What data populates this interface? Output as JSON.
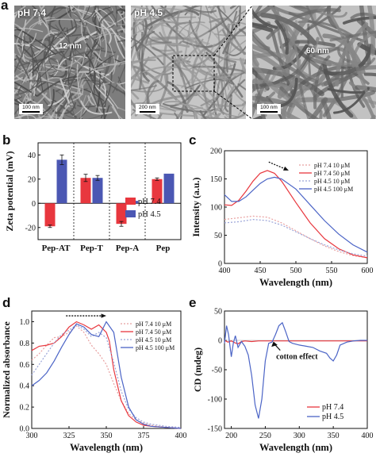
{
  "panel_a": {
    "letter": "a",
    "images": [
      {
        "label": "pH 7.4",
        "scale_bar": "100 nm",
        "measure": "12 nm"
      },
      {
        "label": "pH 4.5",
        "scale_bar": "200 nm"
      },
      {
        "label": "",
        "scale_bar": "100 nm",
        "measure": "60 nm"
      }
    ]
  },
  "chart_data": [
    {
      "panel": "b",
      "type": "bar",
      "ylabel": "Zeta potential (mV)",
      "ylim": [
        -30,
        50
      ],
      "yticks": [
        -20,
        0,
        20,
        40
      ],
      "categories": [
        "Pep-AT",
        "Pep-T",
        "Pep-A",
        "Pep"
      ],
      "series": [
        {
          "name": "pH 7.4",
          "color": "#e8373e",
          "values": [
            -19,
            21,
            -17,
            20
          ],
          "errors": [
            1,
            3,
            2,
            1
          ]
        },
        {
          "name": "pH 4.5",
          "color": "#4b57b3",
          "values": [
            36,
            21,
            2,
            24.5
          ],
          "errors": [
            4,
            2,
            1.5,
            0
          ]
        }
      ],
      "legend": "right"
    },
    {
      "panel": "c",
      "type": "line",
      "xlabel": "Wavelength (nm)",
      "ylabel": "Intensity (a.u.)",
      "xlim": [
        400,
        600
      ],
      "ylim": [
        0,
        200
      ],
      "xticks": [
        400,
        450,
        500,
        550,
        600
      ],
      "yticks": [
        0,
        50,
        100,
        150,
        200
      ],
      "series": [
        {
          "name": "pH 7.4 10 μM",
          "color": "#e8a0a0",
          "dash": true,
          "x": [
            400,
            420,
            440,
            460,
            480,
            500,
            520,
            540,
            560,
            580,
            600
          ],
          "y": [
            78,
            81,
            84,
            82,
            72,
            58,
            44,
            31,
            21,
            14,
            10
          ]
        },
        {
          "name": "pH 7.4 50 μM",
          "color": "#e8373e",
          "dash": false,
          "x": [
            400,
            410,
            420,
            430,
            440,
            450,
            460,
            470,
            480,
            500,
            520,
            540,
            560,
            580,
            600
          ],
          "y": [
            104,
            103,
            112,
            128,
            146,
            160,
            165,
            160,
            146,
            108,
            72,
            44,
            26,
            15,
            10
          ]
        },
        {
          "name": "pH 4.5 10 μM",
          "color": "#9aa4d8",
          "dash": true,
          "x": [
            400,
            420,
            440,
            460,
            480,
            500,
            520,
            540,
            560,
            580,
            600
          ],
          "y": [
            72,
            74,
            78,
            76,
            68,
            56,
            44,
            33,
            24,
            17,
            13
          ]
        },
        {
          "name": "pH 4.5 100 μM",
          "color": "#4b64c6",
          "dash": false,
          "x": [
            400,
            410,
            420,
            430,
            440,
            450,
            460,
            470,
            480,
            500,
            520,
            540,
            560,
            580,
            600
          ],
          "y": [
            122,
            110,
            110,
            118,
            130,
            142,
            150,
            153,
            150,
            132,
            104,
            76,
            52,
            33,
            20
          ]
        }
      ],
      "legend": "top-right",
      "annotation": "arrow"
    },
    {
      "panel": "d",
      "type": "line",
      "xlabel": "Wavelength (nm)",
      "ylabel": "Normalized absorbance",
      "xlim": [
        300,
        400
      ],
      "ylim": [
        0,
        1.1
      ],
      "xticks": [
        300,
        325,
        350,
        375,
        400
      ],
      "yticks": [
        0.0,
        0.2,
        0.4,
        0.6,
        0.8,
        1.0
      ],
      "series": [
        {
          "name": "pH 7.4 10 μM",
          "color": "#e8a0a0",
          "dash": true,
          "x": [
            300,
            305,
            310,
            315,
            320,
            325,
            330,
            335,
            340,
            345,
            350,
            355,
            360,
            365,
            370,
            375,
            380,
            390,
            400
          ],
          "y": [
            0.64,
            0.7,
            0.78,
            0.85,
            0.86,
            0.9,
            0.96,
            0.9,
            0.78,
            0.7,
            0.6,
            0.42,
            0.26,
            0.14,
            0.08,
            0.05,
            0.03,
            0.01,
            0.0
          ]
        },
        {
          "name": "pH 7.4 50 μM",
          "color": "#e8373e",
          "dash": false,
          "x": [
            300,
            305,
            310,
            315,
            320,
            325,
            330,
            335,
            340,
            345,
            350,
            352,
            355,
            360,
            365,
            370,
            375,
            380,
            390,
            400
          ],
          "y": [
            0.73,
            0.77,
            0.78,
            0.8,
            0.86,
            0.95,
            1.0,
            0.97,
            0.93,
            0.97,
            0.9,
            0.82,
            0.55,
            0.26,
            0.12,
            0.06,
            0.03,
            0.02,
            0.01,
            0.0
          ]
        },
        {
          "name": "pH 4.5 10 μM",
          "color": "#9aa4d8",
          "dash": true,
          "x": [
            300,
            305,
            310,
            315,
            320,
            325,
            330,
            335,
            340,
            345,
            350,
            355,
            360,
            365,
            370,
            375,
            380,
            390,
            400
          ],
          "y": [
            0.5,
            0.6,
            0.7,
            0.8,
            0.88,
            0.92,
            0.97,
            0.93,
            0.86,
            0.9,
            0.85,
            0.62,
            0.35,
            0.18,
            0.1,
            0.06,
            0.04,
            0.02,
            0.01
          ]
        },
        {
          "name": "pH 4.5 100 μM",
          "color": "#4b64c6",
          "dash": false,
          "x": [
            300,
            305,
            310,
            315,
            320,
            325,
            330,
            335,
            340,
            345,
            350,
            355,
            360,
            365,
            370,
            375,
            380,
            390,
            400
          ],
          "y": [
            0.4,
            0.45,
            0.52,
            0.63,
            0.76,
            0.88,
            0.98,
            0.95,
            0.88,
            0.86,
            1.0,
            0.9,
            0.48,
            0.2,
            0.08,
            0.04,
            0.02,
            0.01,
            0.0
          ]
        }
      ],
      "legend": "top-right",
      "annotation": "arrow"
    },
    {
      "panel": "e",
      "type": "line",
      "xlabel": "Wavelength (nm)",
      "ylabel": "CD (mdeg)",
      "xlim": [
        190,
        400
      ],
      "ylim": [
        -150,
        50
      ],
      "xticks": [
        200,
        250,
        300,
        350,
        400
      ],
      "yticks": [
        -150,
        -100,
        -50,
        0,
        50
      ],
      "annotation_text": "cotton effect",
      "series": [
        {
          "name": "pH 7.4",
          "color": "#e8373e",
          "dash": false,
          "x": [
            190,
            195,
            200,
            205,
            210,
            215,
            220,
            230,
            240,
            250,
            260,
            280,
            300,
            340,
            400
          ],
          "y": [
            0,
            -3,
            -1,
            -4,
            -6,
            -2,
            -1,
            -2,
            -1,
            -1,
            -1,
            -1,
            -1,
            -1,
            -1
          ]
        },
        {
          "name": "pH 4.5",
          "color": "#4b64c6",
          "dash": false,
          "x": [
            190,
            193,
            196,
            200,
            203,
            206,
            210,
            215,
            220,
            225,
            230,
            235,
            240,
            245,
            250,
            255,
            260,
            265,
            270,
            275,
            280,
            285,
            290,
            300,
            310,
            320,
            330,
            340,
            345,
            350,
            355,
            360,
            370,
            380,
            390,
            400
          ],
          "y": [
            -5,
            25,
            10,
            -28,
            -5,
            8,
            -12,
            -2,
            -10,
            -25,
            -60,
            -110,
            -133,
            -100,
            -35,
            -5,
            -3,
            10,
            25,
            30,
            15,
            -2,
            -5,
            -8,
            -10,
            -12,
            -18,
            -22,
            -30,
            -35,
            -25,
            -8,
            -3,
            -1,
            0,
            0
          ]
        }
      ],
      "legend": "bottom-right"
    }
  ]
}
